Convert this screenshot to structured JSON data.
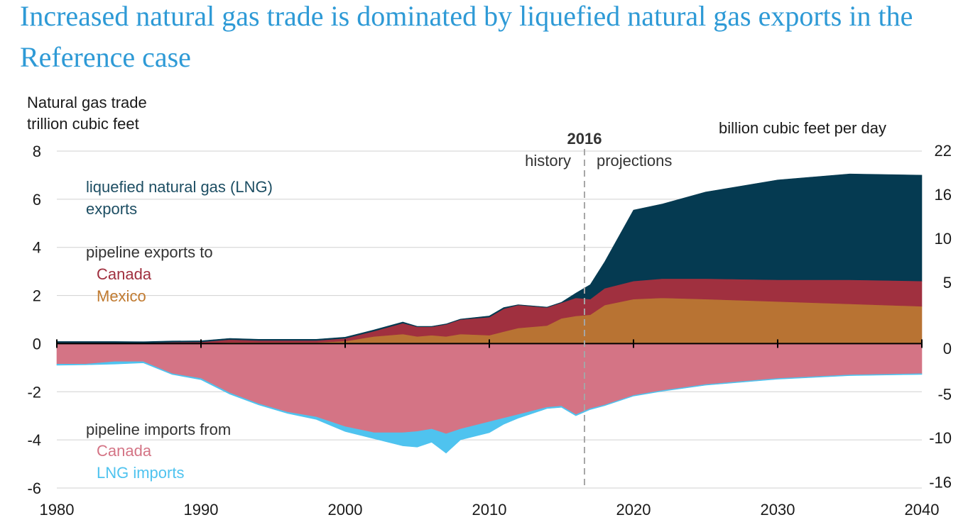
{
  "title": "Increased natural gas trade is dominated by liquefied natural gas exports in the Reference case",
  "chart_data": {
    "type": "area",
    "title": "Increased natural gas trade is dominated by liquefied natural gas exports in the Reference case",
    "ylabel_left": [
      "Natural gas trade",
      "trillion cubic feet"
    ],
    "ylabel_right": "billion cubic feet per day",
    "xlim": [
      1980,
      2040
    ],
    "ylim": [
      -6,
      8
    ],
    "x_ticks": [
      "1980",
      "1990",
      "2000",
      "2010",
      "2020",
      "2030",
      "2040"
    ],
    "y_ticks_left": [
      "8",
      "6",
      "4",
      "2",
      "0",
      "-2",
      "-4",
      "-6"
    ],
    "y_ticks_right": [
      {
        "label": "22",
        "tcf": 8.03
      },
      {
        "label": "16",
        "tcf": 6.2
      },
      {
        "label": "10",
        "tcf": 4.37
      },
      {
        "label": "5",
        "tcf": 2.55
      },
      {
        "label": "0",
        "tcf": -0.2
      },
      {
        "label": "-5",
        "tcf": -2.1
      },
      {
        "label": "-10",
        "tcf": -3.9
      },
      {
        "label": "-16",
        "tcf": -5.75
      }
    ],
    "grid": true,
    "divider": {
      "year": 2016.6,
      "label": "2016",
      "left_label": "history",
      "right_label": "projections"
    },
    "legend_groups": [
      {
        "lines": [
          "liquefied natural gas (LNG)",
          "exports"
        ],
        "colors": [
          "#1d4e63",
          "#1d4e63"
        ]
      },
      {
        "lines": [
          "pipeline exports to",
          "Canada",
          "Mexico"
        ],
        "colors": [
          "#333333",
          "#a0303f",
          "#c07a30"
        ]
      },
      {
        "lines": [
          "pipeline imports from",
          "Canada",
          "LNG imports"
        ],
        "colors": [
          "#333333",
          "#d47485",
          "#4fc3ef"
        ]
      }
    ],
    "x": [
      1980,
      1982,
      1984,
      1986,
      1988,
      1990,
      1992,
      1994,
      1996,
      1998,
      2000,
      2002,
      2004,
      2005,
      2006,
      2007,
      2008,
      2010,
      2011,
      2012,
      2014,
      2015,
      2016,
      2017,
      2018,
      2020,
      2022,
      2025,
      2030,
      2035,
      2040
    ],
    "series": [
      {
        "name": "Mexico",
        "stack": "exports",
        "color": "#b87333",
        "values": [
          0.0,
          0.0,
          0.0,
          0.0,
          0.0,
          0.02,
          0.05,
          0.05,
          0.05,
          0.05,
          0.1,
          0.3,
          0.4,
          0.3,
          0.35,
          0.3,
          0.4,
          0.35,
          0.5,
          0.65,
          0.75,
          1.05,
          1.15,
          1.2,
          1.6,
          1.85,
          1.9,
          1.85,
          1.75,
          1.65,
          1.55
        ]
      },
      {
        "name": "Canada",
        "stack": "exports",
        "color": "#a0303f",
        "values": [
          0.04,
          0.04,
          0.04,
          0.03,
          0.06,
          0.05,
          0.12,
          0.08,
          0.08,
          0.08,
          0.12,
          0.22,
          0.45,
          0.4,
          0.35,
          0.5,
          0.6,
          0.75,
          0.95,
          0.95,
          0.75,
          0.65,
          0.75,
          0.65,
          0.7,
          0.75,
          0.8,
          0.85,
          0.9,
          1.0,
          1.05
        ]
      },
      {
        "name": "liquefied natural gas (LNG) exports",
        "stack": "exports",
        "color": "#053a51",
        "values": [
          0.05,
          0.05,
          0.05,
          0.05,
          0.05,
          0.05,
          0.05,
          0.05,
          0.05,
          0.05,
          0.05,
          0.05,
          0.05,
          0.02,
          0.02,
          0.02,
          0.02,
          0.05,
          0.05,
          0.02,
          0.02,
          0.02,
          0.2,
          0.6,
          1.1,
          2.95,
          3.1,
          3.6,
          4.15,
          4.4,
          4.4
        ]
      },
      {
        "name": "Canada",
        "stack": "imports",
        "color": "#d47485",
        "values": [
          -0.85,
          -0.85,
          -0.75,
          -0.75,
          -1.25,
          -1.45,
          -2.05,
          -2.5,
          -2.85,
          -3.05,
          -3.45,
          -3.7,
          -3.7,
          -3.65,
          -3.55,
          -3.75,
          -3.55,
          -3.25,
          -3.1,
          -2.95,
          -2.65,
          -2.6,
          -2.95,
          -2.7,
          -2.55,
          -2.15,
          -1.95,
          -1.7,
          -1.45,
          -1.3,
          -1.25
        ]
      },
      {
        "name": "LNG imports",
        "stack": "imports",
        "color": "#4fc3ef",
        "values": [
          -0.05,
          -0.03,
          -0.1,
          -0.05,
          -0.03,
          -0.05,
          -0.05,
          -0.05,
          -0.05,
          -0.1,
          -0.2,
          -0.25,
          -0.55,
          -0.65,
          -0.55,
          -0.8,
          -0.45,
          -0.45,
          -0.25,
          -0.15,
          -0.05,
          -0.05,
          -0.05,
          -0.04,
          -0.03,
          -0.03,
          -0.03,
          -0.03,
          -0.03,
          -0.03,
          -0.03
        ]
      }
    ]
  }
}
